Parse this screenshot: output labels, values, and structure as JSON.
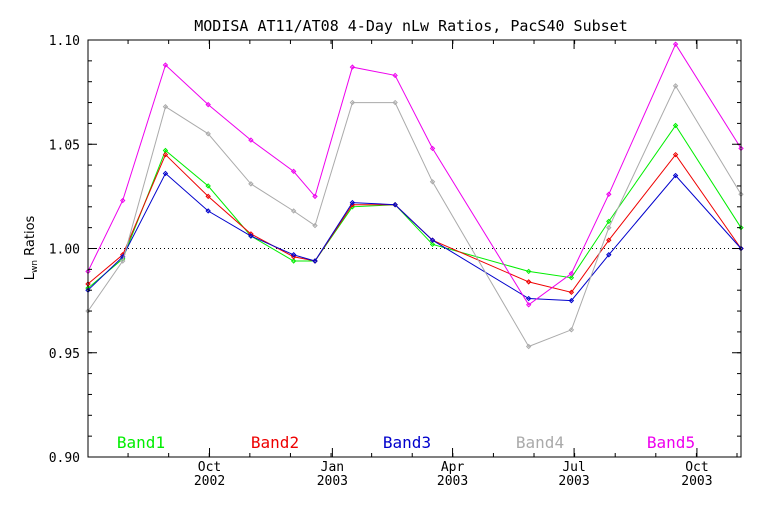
{
  "chart_data": {
    "type": "line",
    "title": "MODISA AT11/AT08 4-Day nLw Ratios, PacS40 Subset",
    "ylabel_main": "L",
    "ylabel_sub": "wn",
    "ylabel_rest": " Ratios",
    "ylim": [
      0.9,
      1.1
    ],
    "yticks": [
      "0.90",
      "0.95",
      "1.00",
      "1.05",
      "1.10"
    ],
    "xticks": [
      {
        "month": "Oct",
        "year": "2002",
        "day": 91
      },
      {
        "month": "Jan",
        "year": "2003",
        "day": 183
      },
      {
        "month": "Apr",
        "year": "2003",
        "day": 273
      },
      {
        "month": "Jul",
        "year": "2003",
        "day": 364
      },
      {
        "month": "Oct",
        "year": "2003",
        "day": 456
      }
    ],
    "xlim_days": [
      0,
      489
    ],
    "reference_line": 1.0,
    "x_days": [
      0,
      26,
      58,
      90,
      122,
      154,
      170,
      198,
      230,
      258,
      330,
      362,
      390,
      440,
      489
    ],
    "series": [
      {
        "name": "Band1",
        "color": "#00ee00",
        "values": [
          0.981,
          0.995,
          1.047,
          1.03,
          1.006,
          0.994,
          0.994,
          1.02,
          1.021,
          1.002,
          0.989,
          0.986,
          1.013,
          1.059,
          1.01
        ]
      },
      {
        "name": "Band2",
        "color": "#ee0000",
        "values": [
          0.983,
          0.997,
          1.045,
          1.025,
          1.007,
          0.996,
          0.994,
          1.021,
          1.021,
          1.004,
          0.984,
          0.979,
          1.004,
          1.045,
          1.0
        ]
      },
      {
        "name": "Band3",
        "color": "#0000cc",
        "values": [
          0.98,
          0.996,
          1.036,
          1.018,
          1.006,
          0.997,
          0.994,
          1.022,
          1.021,
          1.004,
          0.976,
          0.975,
          0.997,
          1.035,
          1.0
        ]
      },
      {
        "name": "Band4",
        "color": "#aaaaaa",
        "values": [
          0.97,
          0.994,
          1.068,
          1.055,
          1.031,
          1.018,
          1.011,
          1.07,
          1.07,
          1.032,
          0.953,
          0.961,
          1.01,
          1.078,
          1.026
        ]
      },
      {
        "name": "Band5",
        "color": "#ee00ee",
        "values": [
          0.989,
          1.023,
          1.088,
          1.069,
          1.052,
          1.037,
          1.025,
          1.087,
          1.083,
          1.048,
          0.973,
          0.988,
          1.026,
          1.098,
          1.048
        ]
      }
    ]
  }
}
